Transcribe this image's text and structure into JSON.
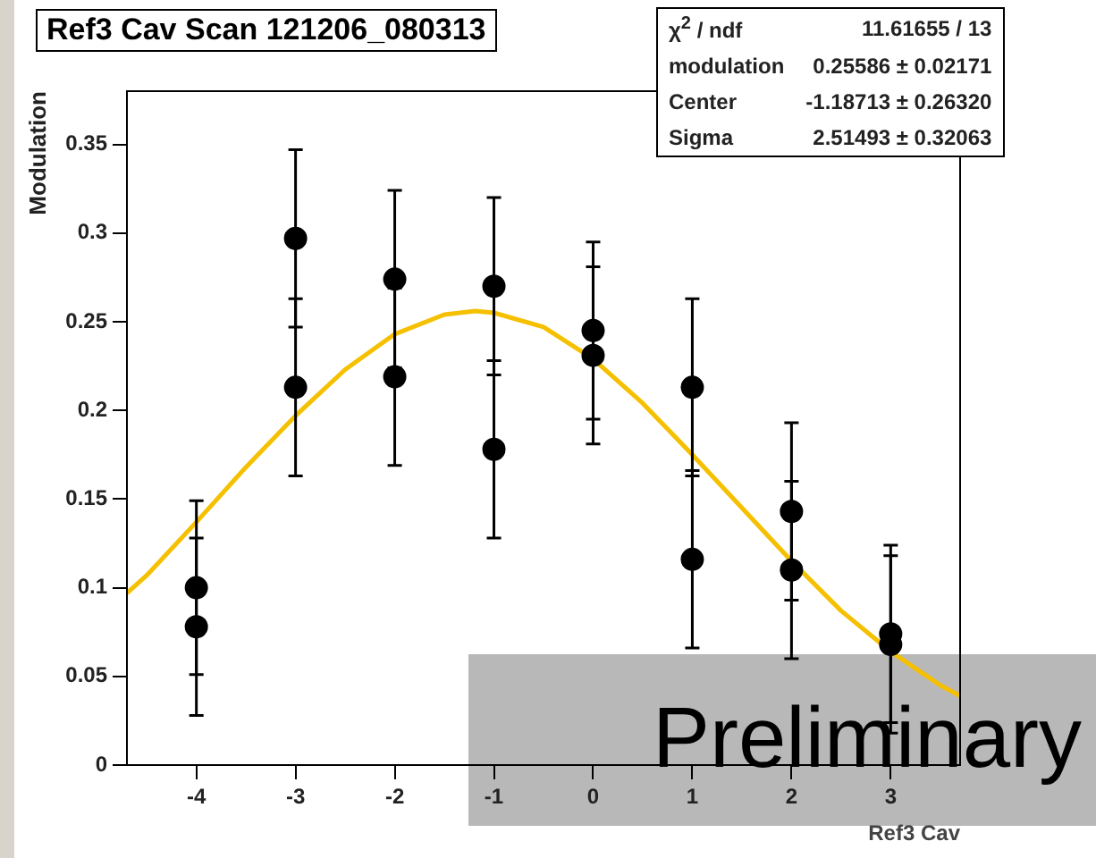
{
  "chart_data": {
    "type": "scatter",
    "title": "Ref3 Cav Scan 121206_080313",
    "xlabel": "Ref3 Cav",
    "ylabel": "Modulation",
    "xlim": [
      -4.7,
      3.7
    ],
    "xticks": [
      -4,
      -3,
      -2,
      -1,
      0,
      1,
      2,
      3
    ],
    "ylim": [
      0,
      0.38
    ],
    "yticks": [
      0,
      0.05,
      0.1,
      0.15,
      0.2,
      0.25,
      0.3,
      0.35
    ],
    "grid": false,
    "legend": false,
    "marker": "circle",
    "series": [
      {
        "color": "#000000",
        "x": [
          -4,
          -4,
          -3,
          -3,
          -2,
          -2,
          -1,
          -1,
          0,
          0,
          1,
          1,
          2,
          2,
          3,
          3
        ],
        "values": [
          0.1,
          0.078,
          0.297,
          0.213,
          0.274,
          0.219,
          0.27,
          0.178,
          0.245,
          0.231,
          0.213,
          0.116,
          0.143,
          0.11,
          0.074,
          0.068
        ],
        "errors": [
          0.049,
          0.05,
          0.05,
          0.05,
          0.05,
          0.05,
          0.05,
          0.05,
          0.05,
          0.05,
          0.05,
          0.05,
          0.05,
          0.05,
          0.05,
          0.05
        ]
      },
      {
        "type": "line",
        "color": "#f5c000",
        "marker": "none",
        "x": [
          -4.7,
          -4.5,
          -4,
          -3.5,
          -3,
          -2.5,
          -2,
          -1.5,
          -1.19,
          -1,
          -0.5,
          0,
          0.5,
          1,
          1.5,
          2,
          2.5,
          3,
          3.5,
          3.7
        ],
        "values": [
          0.097,
          0.107,
          0.137,
          0.168,
          0.197,
          0.223,
          0.243,
          0.254,
          0.256,
          0.255,
          0.247,
          0.229,
          0.204,
          0.175,
          0.145,
          0.115,
          0.087,
          0.064,
          0.045,
          0.039
        ]
      }
    ],
    "annotations": [
      "χ$^{2}$ / ndf",
      "11.61655 / 13",
      "modulation",
      "0.25586 ± 0.02171",
      "Center",
      "-1.18713 ± 0.26320",
      "Sigma",
      "2.51493 ± 0.32063",
      "Preliminary"
    ]
  }
}
